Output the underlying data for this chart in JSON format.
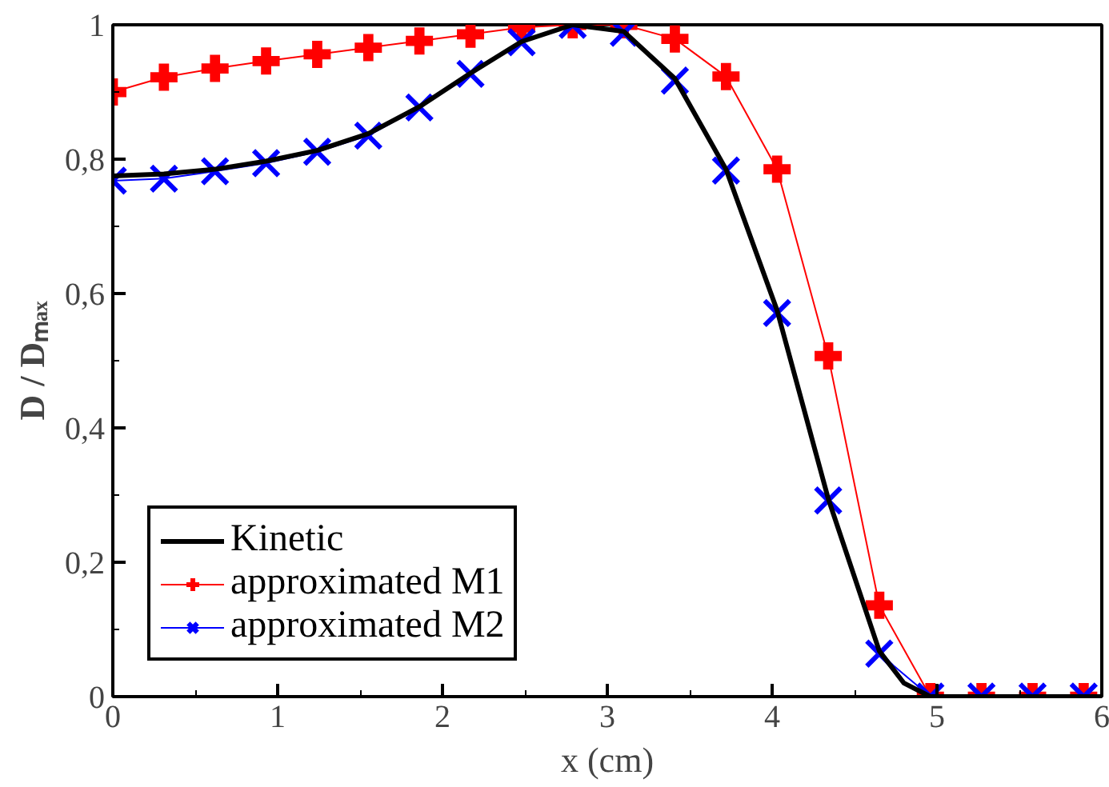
{
  "chart_data": {
    "type": "line",
    "xlabel": "x (cm)",
    "ylabel": "D / Dₘₐₓ",
    "xlim": [
      0,
      6
    ],
    "ylim": [
      0,
      1
    ],
    "xticks": [
      0,
      1,
      2,
      3,
      4,
      5,
      6
    ],
    "yticks": [
      0,
      {
        "value": 0.2,
        "label": "0,2"
      },
      {
        "value": 0.4,
        "label": "0,4"
      },
      {
        "value": 0.6,
        "label": "0,6"
      },
      {
        "value": 0.8,
        "label": "0,8"
      },
      1
    ],
    "grid": false,
    "legend": "bottom left",
    "series": [
      {
        "name": "Kinetic",
        "color": "#000000",
        "marker": "none",
        "x": [
          0,
          0.31,
          0.62,
          0.93,
          1.24,
          1.55,
          1.86,
          2.17,
          2.48,
          2.79,
          3.1,
          3.41,
          3.72,
          4.03,
          4.34,
          4.65,
          4.8,
          4.96,
          5.5,
          6.0
        ],
        "values": [
          0.775,
          0.778,
          0.785,
          0.797,
          0.813,
          0.838,
          0.878,
          0.928,
          0.975,
          1.0,
          0.99,
          0.92,
          0.785,
          0.575,
          0.295,
          0.068,
          0.02,
          0,
          0,
          0
        ]
      },
      {
        "name": "approximated M1",
        "color": "#ff0000",
        "marker": "cross",
        "x": [
          0,
          0.31,
          0.62,
          0.93,
          1.24,
          1.55,
          1.86,
          2.17,
          2.48,
          2.79,
          3.1,
          3.41,
          3.72,
          4.03,
          4.34,
          4.65,
          4.96,
          5.27,
          5.58,
          5.89
        ],
        "values": [
          0.9,
          0.922,
          0.935,
          0.946,
          0.956,
          0.966,
          0.976,
          0.986,
          0.996,
          1.0,
          1.0,
          0.979,
          0.923,
          0.785,
          0.507,
          0.136,
          0,
          0,
          0,
          0
        ]
      },
      {
        "name": "approximated M2",
        "color": "#0000ff",
        "marker": "x",
        "x": [
          0,
          0.31,
          0.62,
          0.93,
          1.24,
          1.55,
          1.86,
          2.17,
          2.48,
          2.79,
          3.1,
          3.41,
          3.72,
          4.03,
          4.34,
          4.65,
          4.96,
          5.27,
          5.58,
          5.89
        ],
        "values": [
          0.768,
          0.771,
          0.782,
          0.794,
          0.811,
          0.835,
          0.877,
          0.927,
          0.974,
          1.0,
          0.988,
          0.917,
          0.783,
          0.571,
          0.292,
          0.064,
          0,
          0,
          0,
          0
        ]
      }
    ]
  }
}
